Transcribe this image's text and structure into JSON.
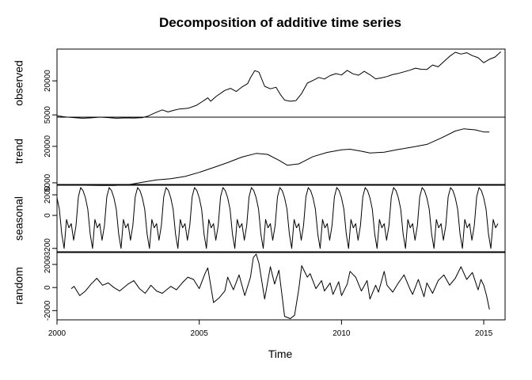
{
  "chart_data": {
    "type": "line",
    "title": "Decomposition of additive time series",
    "xlabel": "Time",
    "xlim": [
      2000,
      2015.75
    ],
    "xticks": [
      2000,
      2005,
      2010,
      2015
    ],
    "grid": false,
    "panels": [
      {
        "name": "observed",
        "ylabel": "observed",
        "ylim": [
          4000,
          34000
        ],
        "yticks": [
          5000,
          20000
        ],
        "points": [
          [
            2000.0,
            4600
          ],
          [
            2000.3,
            4100
          ],
          [
            2000.6,
            3800
          ],
          [
            2000.9,
            3500
          ],
          [
            2001.2,
            3700
          ],
          [
            2001.5,
            4000
          ],
          [
            2001.8,
            3800
          ],
          [
            2002.1,
            3500
          ],
          [
            2002.4,
            3700
          ],
          [
            2002.7,
            3600
          ],
          [
            2003.0,
            3800
          ],
          [
            2003.2,
            4500
          ],
          [
            2003.5,
            6200
          ],
          [
            2003.7,
            7200
          ],
          [
            2003.9,
            6300
          ],
          [
            2004.1,
            7000
          ],
          [
            2004.3,
            7600
          ],
          [
            2004.6,
            7900
          ],
          [
            2004.9,
            9200
          ],
          [
            2005.1,
            10800
          ],
          [
            2005.3,
            12500
          ],
          [
            2005.4,
            11000
          ],
          [
            2005.6,
            13200
          ],
          [
            2005.9,
            15800
          ],
          [
            2006.1,
            16700
          ],
          [
            2006.3,
            15300
          ],
          [
            2006.5,
            17300
          ],
          [
            2006.7,
            18800
          ],
          [
            2006.8,
            21400
          ],
          [
            2006.95,
            24500
          ],
          [
            2007.1,
            23800
          ],
          [
            2007.3,
            17600
          ],
          [
            2007.5,
            16500
          ],
          [
            2007.7,
            17200
          ],
          [
            2007.85,
            14000
          ],
          [
            2008.0,
            11500
          ],
          [
            2008.2,
            11000
          ],
          [
            2008.4,
            11300
          ],
          [
            2008.6,
            14500
          ],
          [
            2008.8,
            19000
          ],
          [
            2009.0,
            20200
          ],
          [
            2009.2,
            21500
          ],
          [
            2009.4,
            20800
          ],
          [
            2009.6,
            22300
          ],
          [
            2009.8,
            23200
          ],
          [
            2010.0,
            22600
          ],
          [
            2010.2,
            24600
          ],
          [
            2010.4,
            23100
          ],
          [
            2010.6,
            22500
          ],
          [
            2010.8,
            24200
          ],
          [
            2011.0,
            22700
          ],
          [
            2011.2,
            20900
          ],
          [
            2011.4,
            21300
          ],
          [
            2011.6,
            21900
          ],
          [
            2011.8,
            22800
          ],
          [
            2012.0,
            23300
          ],
          [
            2012.2,
            24000
          ],
          [
            2012.4,
            24700
          ],
          [
            2012.6,
            25600
          ],
          [
            2012.8,
            25100
          ],
          [
            2013.0,
            25000
          ],
          [
            2013.2,
            27000
          ],
          [
            2013.4,
            26200
          ],
          [
            2013.6,
            28500
          ],
          [
            2013.8,
            30800
          ],
          [
            2014.0,
            32600
          ],
          [
            2014.2,
            31800
          ],
          [
            2014.4,
            32400
          ],
          [
            2014.6,
            31100
          ],
          [
            2014.8,
            30200
          ],
          [
            2015.0,
            28000
          ],
          [
            2015.2,
            29500
          ],
          [
            2015.4,
            30500
          ],
          [
            2015.6,
            32800
          ]
        ]
      },
      {
        "name": "trend",
        "ylabel": "trend",
        "ylim": [
          4000,
          32000
        ],
        "yticks": [
          5000,
          20000
        ],
        "points": [
          [
            2000.5,
            4300
          ],
          [
            2001.0,
            4000
          ],
          [
            2001.5,
            3900
          ],
          [
            2002.0,
            3900
          ],
          [
            2002.5,
            4200
          ],
          [
            2003.0,
            5200
          ],
          [
            2003.5,
            6200
          ],
          [
            2004.0,
            6700
          ],
          [
            2004.5,
            7600
          ],
          [
            2005.0,
            9300
          ],
          [
            2005.5,
            11300
          ],
          [
            2006.0,
            13300
          ],
          [
            2006.5,
            15600
          ],
          [
            2007.0,
            17100
          ],
          [
            2007.4,
            16700
          ],
          [
            2007.8,
            14300
          ],
          [
            2008.1,
            12200
          ],
          [
            2008.5,
            12800
          ],
          [
            2009.0,
            15800
          ],
          [
            2009.5,
            17500
          ],
          [
            2010.0,
            18600
          ],
          [
            2010.3,
            18800
          ],
          [
            2010.7,
            18000
          ],
          [
            2011.0,
            17300
          ],
          [
            2011.5,
            17600
          ],
          [
            2012.0,
            18700
          ],
          [
            2012.5,
            19700
          ],
          [
            2013.0,
            20800
          ],
          [
            2013.5,
            23400
          ],
          [
            2014.0,
            26300
          ],
          [
            2014.3,
            27200
          ],
          [
            2014.7,
            26800
          ],
          [
            2015.0,
            25900
          ],
          [
            2015.2,
            25900
          ]
        ]
      },
      {
        "name": "seasonal",
        "ylabel": "seasonal",
        "ylim": [
          -3600,
          3000
        ],
        "yticks": [
          -3200,
          0,
          2000
        ],
        "period": 1,
        "pattern": [
          1700,
          600,
          -1800,
          -3200,
          -400,
          -1200,
          -800,
          -2400,
          -1000,
          1800,
          2700,
          2400
        ],
        "x_start": 2000.0,
        "x_end": 2015.5
      },
      {
        "name": "random",
        "ylabel": "random",
        "ylim": [
          -2800,
          3100
        ],
        "yticks": [
          -2000,
          0,
          2000
        ],
        "points": [
          [
            2000.5,
            -100
          ],
          [
            2000.6,
            100
          ],
          [
            2000.8,
            -700
          ],
          [
            2001.0,
            -300
          ],
          [
            2001.2,
            300
          ],
          [
            2001.4,
            800
          ],
          [
            2001.6,
            200
          ],
          [
            2001.8,
            400
          ],
          [
            2002.0,
            0
          ],
          [
            2002.2,
            -300
          ],
          [
            2002.5,
            300
          ],
          [
            2002.7,
            600
          ],
          [
            2002.9,
            -100
          ],
          [
            2003.1,
            -500
          ],
          [
            2003.3,
            200
          ],
          [
            2003.5,
            -300
          ],
          [
            2003.7,
            -500
          ],
          [
            2004.0,
            100
          ],
          [
            2004.2,
            -200
          ],
          [
            2004.4,
            400
          ],
          [
            2004.6,
            900
          ],
          [
            2004.8,
            700
          ],
          [
            2005.0,
            -100
          ],
          [
            2005.2,
            1200
          ],
          [
            2005.3,
            1700
          ],
          [
            2005.5,
            -1300
          ],
          [
            2005.7,
            -900
          ],
          [
            2005.9,
            -300
          ],
          [
            2006.0,
            900
          ],
          [
            2006.2,
            -200
          ],
          [
            2006.4,
            1100
          ],
          [
            2006.6,
            -700
          ],
          [
            2006.8,
            900
          ],
          [
            2006.9,
            2600
          ],
          [
            2007.0,
            2900
          ],
          [
            2007.1,
            2100
          ],
          [
            2007.3,
            -1000
          ],
          [
            2007.5,
            1800
          ],
          [
            2007.65,
            300
          ],
          [
            2007.8,
            1500
          ],
          [
            2007.9,
            -500
          ],
          [
            2008.0,
            -2500
          ],
          [
            2008.2,
            -2700
          ],
          [
            2008.35,
            -2400
          ],
          [
            2008.5,
            -100
          ],
          [
            2008.6,
            1900
          ],
          [
            2008.8,
            900
          ],
          [
            2008.9,
            1200
          ],
          [
            2009.1,
            -100
          ],
          [
            2009.3,
            600
          ],
          [
            2009.4,
            -300
          ],
          [
            2009.6,
            400
          ],
          [
            2009.7,
            -600
          ],
          [
            2009.9,
            500
          ],
          [
            2010.0,
            -700
          ],
          [
            2010.2,
            300
          ],
          [
            2010.3,
            1400
          ],
          [
            2010.5,
            900
          ],
          [
            2010.7,
            -300
          ],
          [
            2010.9,
            600
          ],
          [
            2011.0,
            -1000
          ],
          [
            2011.2,
            200
          ],
          [
            2011.3,
            -400
          ],
          [
            2011.5,
            1400
          ],
          [
            2011.6,
            200
          ],
          [
            2011.8,
            -400
          ],
          [
            2012.0,
            400
          ],
          [
            2012.2,
            1100
          ],
          [
            2012.4,
            -100
          ],
          [
            2012.5,
            -600
          ],
          [
            2012.7,
            700
          ],
          [
            2012.9,
            -800
          ],
          [
            2013.0,
            400
          ],
          [
            2013.2,
            -500
          ],
          [
            2013.4,
            600
          ],
          [
            2013.6,
            1100
          ],
          [
            2013.8,
            200
          ],
          [
            2014.0,
            800
          ],
          [
            2014.2,
            1800
          ],
          [
            2014.4,
            700
          ],
          [
            2014.6,
            1300
          ],
          [
            2014.8,
            -200
          ],
          [
            2014.9,
            700
          ],
          [
            2015.0,
            200
          ],
          [
            2015.1,
            -700
          ],
          [
            2015.2,
            -1900
          ]
        ]
      }
    ]
  }
}
